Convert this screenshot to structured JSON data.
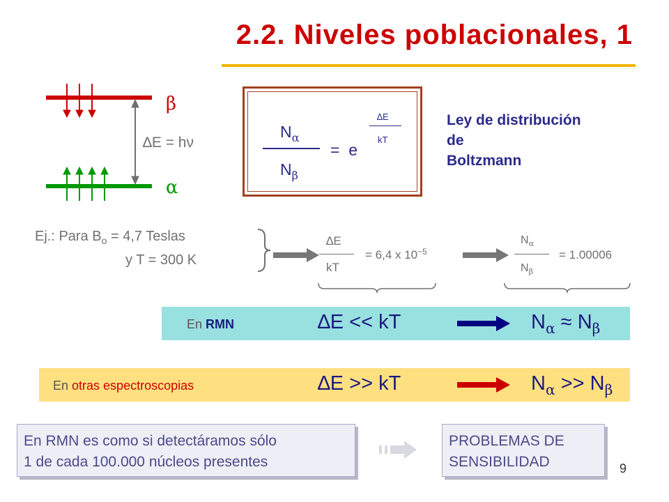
{
  "title": "2.2. Niveles poblacionales, 1",
  "levels": {
    "beta_label": "β",
    "alpha_label": "α",
    "delta_e_label": "∆E = hν"
  },
  "formula": {
    "num_main": "N",
    "num_sub": "α",
    "den_main": "N",
    "den_sub": "β",
    "equals_e": "=  e",
    "exp_num": "∆E",
    "exp_den": "kT"
  },
  "boltzmann": {
    "line1": "Ley de distribución",
    "line2": "de",
    "line3": "Boltzmann"
  },
  "example": {
    "line1_a": "Ej.: Para B",
    "line1_sub": "o",
    "line1_b": " = 4,7 Teslas",
    "line2": "y T = 300 K",
    "ratio_num": "∆E",
    "ratio_den": "kT",
    "ratio_value": "= 6,4 x 10",
    "ratio_exp": "−5",
    "pop_num_main": "N",
    "pop_num_sub": "α",
    "pop_den_main": "N",
    "pop_den_sub": "β",
    "pop_value": "= 1.00006"
  },
  "rmn_band": {
    "prefix": "En ",
    "highlight": "RMN",
    "relation": "∆E << kT",
    "result_main1": "N",
    "result_sub1": "α",
    "result_op": " ≈ ",
    "result_main2": "N",
    "result_sub2": "β"
  },
  "other_band": {
    "prefix": "En ",
    "highlight": "otras espectroscopias",
    "relation": "∆E >> kT",
    "result_main1": "N",
    "result_sub1": "α",
    "result_op": " >> ",
    "result_main2": "N",
    "result_sub2": "β"
  },
  "note_box": {
    "line1": "En RMN es como si detectáramos sólo",
    "line2": "1 de cada 100.000 núcleos presentes"
  },
  "problem_box": {
    "line1": "PROBLEMAS DE",
    "line2": "SENSIBILIDAD"
  },
  "page_number": "9",
  "colors": {
    "title_red": "#cc0000",
    "title_underline": "#f0b400",
    "beta_level": "#cc0000",
    "alpha_level": "#009900",
    "rmn_band": "#99e0e0",
    "other_band": "#ffe080",
    "navy_arrow": "#000080",
    "red_arrow": "#cc0000",
    "highlight_blue": "#1a1a80",
    "highlight_red": "#cc0000"
  }
}
